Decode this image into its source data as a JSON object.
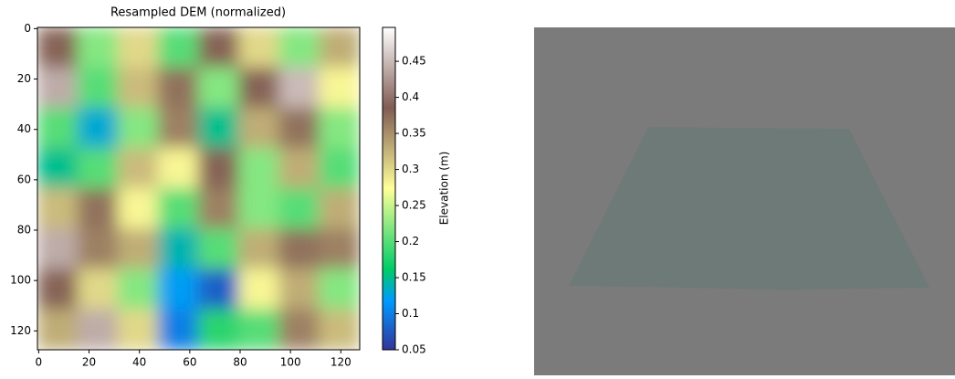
{
  "chart_data": {
    "type": "heatmap",
    "title": "Resampled DEM (normalized)",
    "xlim": [
      -0.5,
      127.5
    ],
    "ylim": [
      127.5,
      -0.5
    ],
    "xticks": [
      0,
      20,
      40,
      60,
      80,
      100,
      120
    ],
    "yticks": [
      0,
      20,
      40,
      60,
      80,
      100,
      120
    ],
    "z": [
      [
        0.38,
        0.22,
        0.3,
        0.2,
        0.38,
        0.3,
        0.22,
        0.33
      ],
      [
        0.44,
        0.2,
        0.32,
        0.37,
        0.22,
        0.38,
        0.45,
        0.28
      ],
      [
        0.2,
        0.13,
        0.22,
        0.36,
        0.15,
        0.33,
        0.37,
        0.22
      ],
      [
        0.15,
        0.2,
        0.32,
        0.28,
        0.38,
        0.22,
        0.33,
        0.2
      ],
      [
        0.32,
        0.37,
        0.28,
        0.2,
        0.36,
        0.22,
        0.2,
        0.33
      ],
      [
        0.44,
        0.36,
        0.33,
        0.14,
        0.2,
        0.33,
        0.37,
        0.36
      ],
      [
        0.38,
        0.3,
        0.22,
        0.12,
        0.08,
        0.28,
        0.33,
        0.22
      ],
      [
        0.33,
        0.44,
        0.3,
        0.1,
        0.18,
        0.2,
        0.36,
        0.32
      ]
    ],
    "colorbar": {
      "label": "Elevation (m)",
      "colormap": "terrain",
      "clim": [
        0.05,
        0.497
      ],
      "ticks": [
        0.05,
        0.1,
        0.15,
        0.2,
        0.25,
        0.3,
        0.35,
        0.4,
        0.45
      ]
    }
  }
}
